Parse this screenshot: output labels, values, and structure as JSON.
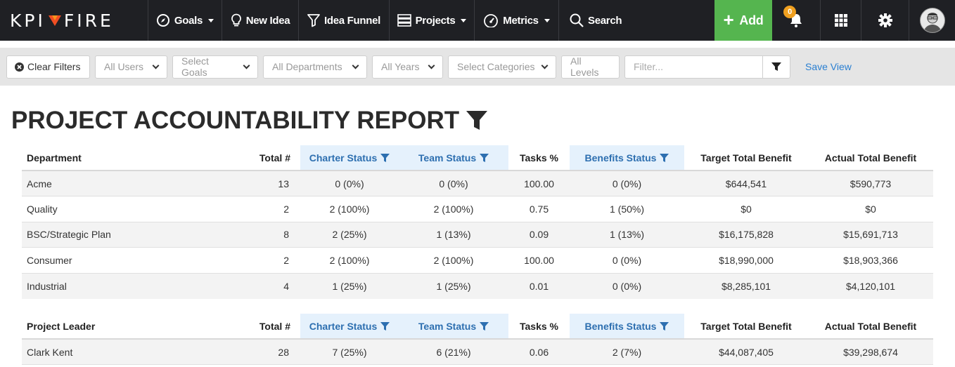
{
  "nav": {
    "logo_text_left": "KPI",
    "logo_text_right": "FIRE",
    "goals": "Goals",
    "new_idea": "New Idea",
    "idea_funnel": "Idea Funnel",
    "projects": "Projects",
    "metrics": "Metrics",
    "search": "Search",
    "add": "Add",
    "notification_count": "0",
    "accent_color": "#55b54f",
    "badge_color": "#f0a020",
    "logo_accent": "#f04e23"
  },
  "filters": {
    "clear": "Clear Filters",
    "users": "All Users",
    "goals": "Select Goals",
    "departments": "All Departments",
    "years": "All Years",
    "categories": "Select Categories",
    "levels": "All Levels",
    "filter_placeholder": "Filter...",
    "save_view": "Save View"
  },
  "title": "PROJECT ACCOUNTABILITY REPORT",
  "headers": {
    "department": "Department",
    "project_leader": "Project Leader",
    "total": "Total #",
    "charter": "Charter Status",
    "team": "Team Status",
    "tasks": "Tasks %",
    "benefits": "Benefits Status",
    "target": "Target Total Benefit",
    "actual": "Actual Total Benefit"
  },
  "departments": [
    {
      "name": "Acme",
      "total": "13",
      "charter": "0 (0%)",
      "team": "0 (0%)",
      "tasks": "100.00",
      "benefits": "0 (0%)",
      "target": "$644,541",
      "actual": "$590,773"
    },
    {
      "name": "Quality",
      "total": "2",
      "charter": "2 (100%)",
      "team": "2 (100%)",
      "tasks": "0.75",
      "benefits": "1 (50%)",
      "target": "$0",
      "actual": "$0"
    },
    {
      "name": "BSC/Strategic Plan",
      "total": "8",
      "charter": "2 (25%)",
      "team": "1 (13%)",
      "tasks": "0.09",
      "benefits": "1 (13%)",
      "target": "$16,175,828",
      "actual": "$15,691,713"
    },
    {
      "name": "Consumer",
      "total": "2",
      "charter": "2 (100%)",
      "team": "2 (100%)",
      "tasks": "100.00",
      "benefits": "0 (0%)",
      "target": "$18,990,000",
      "actual": "$18,903,366"
    },
    {
      "name": "Industrial",
      "total": "4",
      "charter": "1 (25%)",
      "team": "1 (25%)",
      "tasks": "0.01",
      "benefits": "0 (0%)",
      "target": "$8,285,101",
      "actual": "$4,120,101"
    }
  ],
  "leaders": [
    {
      "name": "Clark Kent",
      "total": "28",
      "charter": "7 (25%)",
      "team": "6 (21%)",
      "tasks": "0.06",
      "benefits": "2 (7%)",
      "target": "$44,087,405",
      "actual": "$39,298,674"
    }
  ]
}
